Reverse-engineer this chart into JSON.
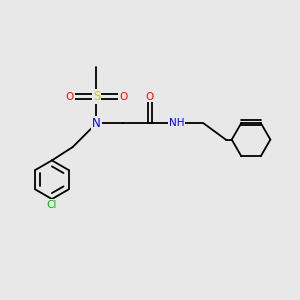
{
  "background_color": "#e8e8e8",
  "bond_color": "#000000",
  "atom_colors": {
    "N": "#0000ff",
    "O": "#ff0000",
    "S": "#cccc00",
    "Cl": "#00bb00",
    "C": "#000000",
    "H": "#4488aa"
  },
  "figsize": [
    3.0,
    3.0
  ],
  "dpi": 100
}
